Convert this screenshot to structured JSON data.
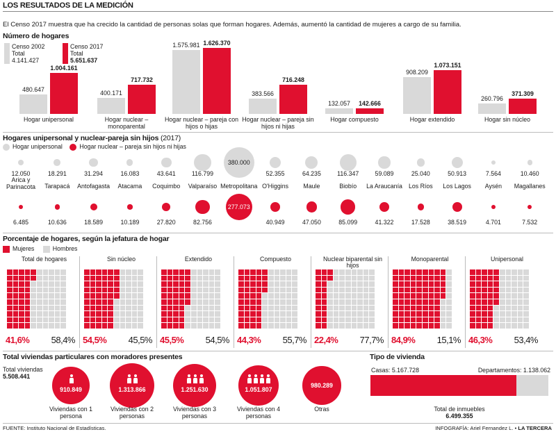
{
  "header": {
    "title": "LOS RESULTADOS DE LA MEDICIÓN",
    "intro": "El Censo 2017 muestra que ha crecido la cantidad de personas solas que forman hogares. Además, aumentó la cantidad de mujeres a cargo de su familia."
  },
  "colors": {
    "red": "#e0102f",
    "gray": "#d9d9d9"
  },
  "hogares": {
    "title": "Número de hogares",
    "legend": {
      "c2002": "Censo 2002",
      "c2002_total_label": "Total",
      "c2002_total": "4.141.427",
      "c2017": "Censo 2017",
      "c2017_total_label": "Total",
      "c2017_total": "5.651.637"
    }
  },
  "unip": {
    "title_bold": "Hogares unipersonal y nuclear-pareja sin hijos",
    "title_year": "(2017)",
    "legend_gray": "Hogar unipersonal",
    "legend_red": "Hogar nuclear – pareja sin hijos ni hijas"
  },
  "jef": {
    "title": "Porcentaje de hogares, según la jefatura de hogar",
    "legend_red": "Mujeres",
    "legend_gray": "Hombres"
  },
  "viv": {
    "title": "Total viviendas particulares con moradores presentes",
    "total_label": "Total viviendas",
    "total": "5.508.441",
    "items": [
      {
        "value": "910.849",
        "label": "Viviendas con 1 persona",
        "persons": 1
      },
      {
        "value": "1.313.866",
        "label": "Viviendas con 2 personas",
        "persons": 2
      },
      {
        "value": "1.251.630",
        "label": "Viviendas con 3 personas",
        "persons": 3
      },
      {
        "value": "1.051.807",
        "label": "Viviendas con 4 personas",
        "persons": 4
      },
      {
        "value": "980.289",
        "label": "Otras",
        "persons": 0
      }
    ]
  },
  "tipo": {
    "title": "Tipo de vivienda",
    "casas_label": "Casas: 5.167.728",
    "deptos_label": "Departamentos: 1.138.062",
    "total_label": "Total de inmuebles",
    "total": "6.499.355",
    "casas": 5167728,
    "deptos": 1138062
  },
  "footer": {
    "source": "FUENTE: Instituto Nacional de Estadísticas.",
    "credit": "INFOGRAFÍA: Ariel Fernandez L.",
    "brand": "LA TERCERA"
  },
  "chart_data": [
    {
      "type": "bar",
      "title": "Número de hogares",
      "categories": [
        "Hogar unipersonal",
        "Hogar nuclear – monoparental",
        "Hogar nuclear – pareja con hijos o hijas",
        "Hogar nuclear – pareja sin hijos ni hijas",
        "Hogar compuesto",
        "Hogar extendido",
        "Hogar sin núcleo"
      ],
      "series": [
        {
          "name": "Censo 2002",
          "values": [
            480647,
            400171,
            1575981,
            383566,
            132057,
            908209,
            260796
          ],
          "labels": [
            "480.647",
            "400.171",
            "1.575.981",
            "383.566",
            "132.057",
            "908.209",
            "260.796"
          ]
        },
        {
          "name": "Censo 2017",
          "values": [
            1004161,
            717732,
            1626370,
            716248,
            142666,
            1073151,
            371309
          ],
          "labels": [
            "1.004.161",
            "717.732",
            "1.626.370",
            "716.248",
            "142.666",
            "1.073.151",
            "371.309"
          ]
        }
      ]
    },
    {
      "type": "scatter",
      "title": "Hogares unipersonal y nuclear-pareja sin hijos (2017)",
      "categories": [
        "Arica y Parinacota",
        "Tarapacá",
        "Antofagasta",
        "Atacama",
        "Coquimbo",
        "Valparaíso",
        "Metropolitana",
        "O'Higgins",
        "Maule",
        "Biobío",
        "La Araucanía",
        "Los Ríos",
        "Los Lagos",
        "Aysén",
        "Magallanes"
      ],
      "series": [
        {
          "name": "Hogar unipersonal",
          "values": [
            12050,
            18291,
            31294,
            16083,
            43641,
            116799,
            380000,
            52355,
            64235,
            116347,
            59089,
            25040,
            50913,
            7564,
            10460
          ],
          "labels": [
            "12.050",
            "18.291",
            "31.294",
            "16.083",
            "43.641",
            "116.799",
            "380.000",
            "52.355",
            "64.235",
            "116.347",
            "59.089",
            "25.040",
            "50.913",
            "7.564",
            "10.460"
          ]
        },
        {
          "name": "Hogar nuclear – pareja sin hijos ni hijas",
          "values": [
            6485,
            10636,
            18589,
            10189,
            27820,
            82756,
            277073,
            40949,
            47050,
            85099,
            41322,
            17528,
            38519,
            4701,
            7532
          ],
          "labels": [
            "6.485",
            "10.636",
            "18.589",
            "10.189",
            "27.820",
            "82.756",
            "277.073",
            "40.949",
            "47.050",
            "85.099",
            "41.322",
            "17.528",
            "38.519",
            "4.701",
            "7.532"
          ]
        }
      ]
    },
    {
      "type": "waffle",
      "title": "Porcentaje de hogares, según la jefatura de hogar",
      "categories": [
        "Total de hogares",
        "Sin núcleo",
        "Extendido",
        "Compuesto",
        "Nuclear biparental sin hijos",
        "Monoparental",
        "Unipersonal"
      ],
      "series": [
        {
          "name": "Mujeres",
          "values": [
            41.6,
            54.5,
            45.5,
            44.3,
            22.4,
            84.9,
            46.3
          ],
          "labels": [
            "41,6%",
            "54,5%",
            "45,5%",
            "44,3%",
            "22,4%",
            "84,9%",
            "46,3%"
          ]
        },
        {
          "name": "Hombres",
          "values": [
            58.4,
            45.5,
            54.5,
            55.7,
            77.7,
            15.1,
            53.4
          ],
          "labels": [
            "58,4%",
            "45,5%",
            "54,5%",
            "55,7%",
            "77,7%",
            "15,1%",
            "53,4%"
          ]
        }
      ]
    }
  ]
}
